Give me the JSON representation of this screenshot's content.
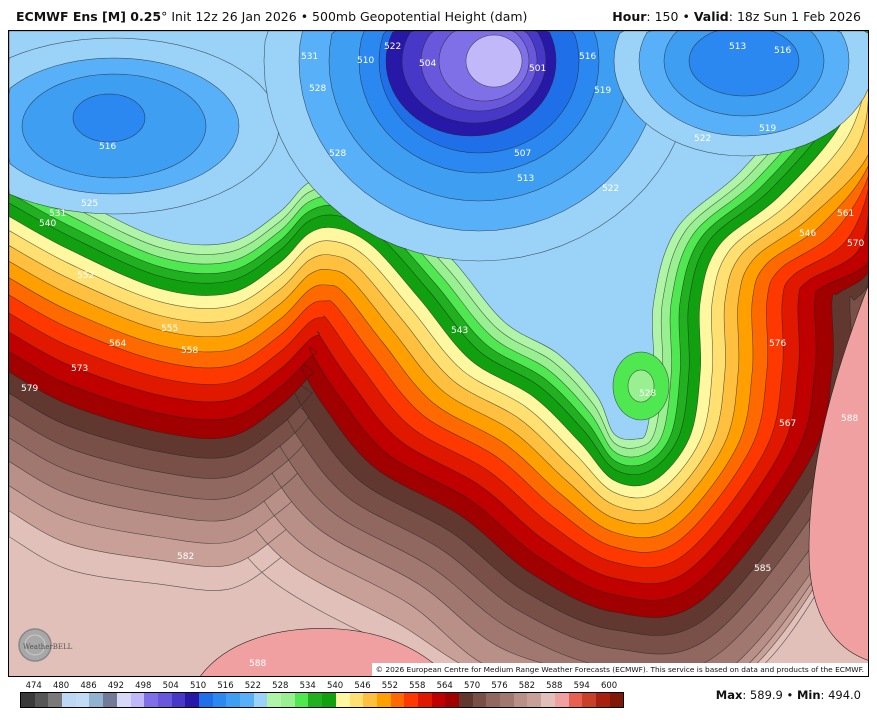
{
  "header": {
    "model": "ECMWF Ens [M] 0.25",
    "degree": "°",
    "init": "Init 12z 26 Jan 2026",
    "separator": "•",
    "product": "500mb Geopotential Height (dam)",
    "hour_label": "Hour",
    "hour_value": ": 150",
    "valid_label": "Valid",
    "valid_value": ": 18z Sun 1 Feb 2026"
  },
  "map": {
    "contour_labels": [
      "522",
      "531",
      "528",
      "516",
      "525",
      "531",
      "540",
      "552",
      "555",
      "564",
      "558",
      "573",
      "579",
      "510",
      "504",
      "501",
      "516",
      "519",
      "507",
      "513",
      "522",
      "528",
      "543",
      "513",
      "516",
      "519",
      "522",
      "546",
      "561",
      "570",
      "576",
      "567",
      "588",
      "582",
      "585",
      "588",
      "528"
    ],
    "logo_text": "WeatherBELL",
    "copyright": "© 2026 European Centre for Medium Range Weather Forecasts (ECMWF). This service is based on data and products of the ECMWF."
  },
  "colorbar": {
    "labels": [
      "474",
      "480",
      "486",
      "492",
      "498",
      "504",
      "510",
      "516",
      "522",
      "528",
      "534",
      "540",
      "546",
      "552",
      "558",
      "564",
      "570",
      "576",
      "582",
      "588",
      "594",
      "600"
    ],
    "colors": [
      "#3a3a3a",
      "#565656",
      "#7a7878",
      "#bcd8f5",
      "#c2dcf6",
      "#90b4d0",
      "#727a98",
      "#d8d8f8",
      "#c0b8f8",
      "#8070e8",
      "#6a58dc",
      "#4838c8",
      "#2818a8",
      "#1f6fe8",
      "#2a88f0",
      "#3e9ef2",
      "#58b0f8",
      "#9ad2f8",
      "#b0f4a8",
      "#98f090",
      "#50e850",
      "#20b020",
      "#10a010",
      "#fff8a0",
      "#ffe070",
      "#ffc040",
      "#ffa000",
      "#ff6a00",
      "#ff3800",
      "#e01800",
      "#c00000",
      "#a00000",
      "#603830",
      "#785048",
      "#906860",
      "#a07870",
      "#b89088",
      "#c8a098",
      "#e0c0b8",
      "#f0a0a0",
      "#e86050",
      "#c84028",
      "#a82010",
      "#801808"
    ]
  },
  "stats": {
    "max_label": "Max",
    "max_value": ": 589.9",
    "sep": "•",
    "min_label": "Min",
    "min_value": ": 494.0"
  }
}
